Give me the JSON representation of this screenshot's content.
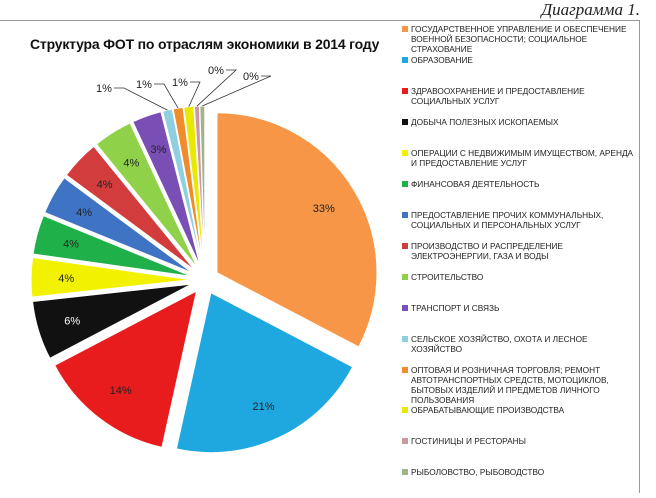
{
  "caption": "Диаграмма 1.",
  "chart_data": {
    "type": "pie",
    "title": "Структура ФОТ по отраслям экономики в 2014 году",
    "legend_position": "right",
    "slices": [
      {
        "label": "ГОСУДАРСТВЕННОЕ УПРАВЛЕНИЕ И ОБЕСПЕЧЕНИЕ ВОЕННОЙ БЕЗОПАСНОСТИ; СОЦИАЛЬНОЕ СТРАХОВАНИЕ",
        "value": 33,
        "text": "33%",
        "color": "#f79646"
      },
      {
        "label": "ОБРАЗОВАНИЕ",
        "value": 21,
        "text": "21%",
        "color": "#1fa8e0"
      },
      {
        "label": "ЗДРАВООХРАНЕНИЕ И ПРЕДОСТАВЛЕНИЕ СОЦИАЛЬНЫХ УСЛУГ",
        "value": 14,
        "text": "14%",
        "color": "#e81c1c"
      },
      {
        "label": "ДОБЫЧА ПОЛЕЗНЫХ ИСКОПАЕМЫХ",
        "value": 6,
        "text": "6%",
        "color": "#111111"
      },
      {
        "label": "ОПЕРАЦИИ С НЕДВИЖИМЫМ ИМУЩЕСТВОМ, АРЕНДА И ПРЕДОСТАВЛЕНИЕ УСЛУГ",
        "value": 4,
        "text": "4%",
        "color": "#f2f200"
      },
      {
        "label": "ФИНАНСОВАЯ ДЕЯТЕЛЬНОСТЬ",
        "value": 4,
        "text": "4%",
        "color": "#1fb04a"
      },
      {
        "label": "ПРЕДОСТАВЛЕНИЕ ПРОЧИХ КОММУНАЛЬНЫХ, СОЦИАЛЬНЫХ И ПЕРСОНАЛЬНЫХ УСЛУГ",
        "value": 4,
        "text": "4%",
        "color": "#3f73c4"
      },
      {
        "label": "ПРОИЗВОДСТВО И РАСПРЕДЕЛЕНИЕ ЭЛЕКТРОЭНЕРГИИ, ГАЗА И ВОДЫ",
        "value": 4,
        "text": "4%",
        "color": "#d23c3c"
      },
      {
        "label": "СТРОИТЕЛЬСТВО",
        "value": 4,
        "text": "4%",
        "color": "#8fd24a"
      },
      {
        "label": "ТРАНСПОРТ И СВЯЗЬ",
        "value": 3,
        "text": "3%",
        "color": "#7a4fb5"
      },
      {
        "label": "СЕЛЬСКОЕ ХОЗЯЙСТВО, ОХОТА И ЛЕСНОЕ ХОЗЯЙСТВО",
        "value": 1,
        "text": "1%",
        "color": "#8fd0e0"
      },
      {
        "label": "ОПТОВАЯ И РОЗНИЧНАЯ ТОРГОВЛЯ; РЕМОНТ АВТОТРАНСПОРТНЫХ СРЕДСТВ, МОТОЦИКЛОВ, БЫТОВЫХ ИЗДЕЛИЙ И ПРЕДМЕТОВ ЛИЧНОГО ПОЛЬЗОВАНИЯ",
        "value": 1,
        "text": "1%",
        "color": "#f08c2a"
      },
      {
        "label": "ОБРАБАТЫВАЮЩИЕ ПРОИЗВОДСТВА",
        "value": 1,
        "text": "1%",
        "color": "#e8e800"
      },
      {
        "label": "ГОСТИНИЦЫ И РЕСТОРАНЫ",
        "value": 0,
        "text": "0%",
        "color": "#c89aa0"
      },
      {
        "label": "РЫБОЛОВСТВО, РЫБОВОДСТВО",
        "value": 0,
        "text": "0%",
        "color": "#a0b48c"
      }
    ]
  }
}
